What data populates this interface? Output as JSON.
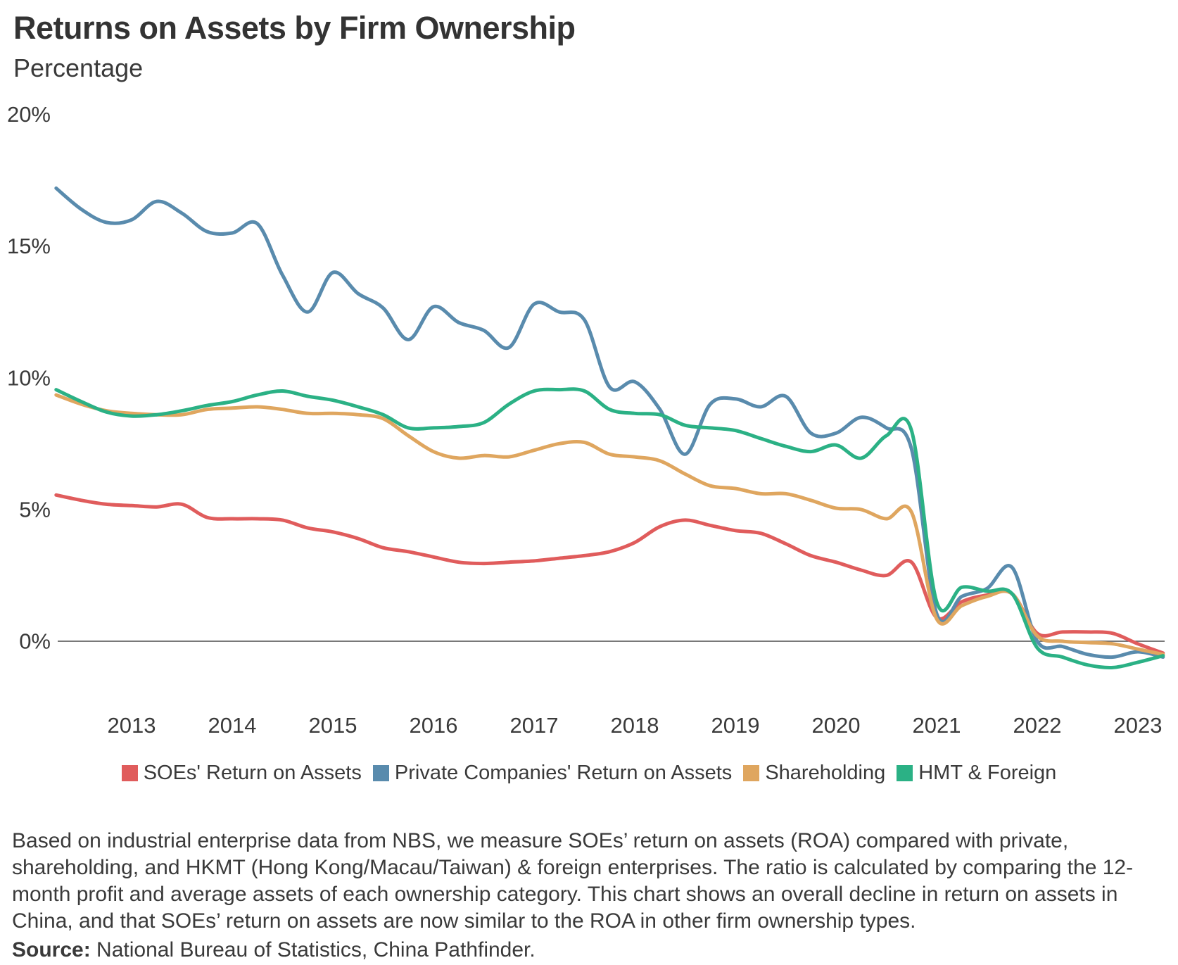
{
  "header": {
    "title": "Returns on Assets by Firm Ownership",
    "subtitle": "Percentage"
  },
  "caption": "Based on industrial enterprise data from NBS, we measure SOEs’ return on assets (ROA) compared with private, shareholding, and HKMT (Hong Kong/Macau/Taiwan) & foreign enterprises. The ratio is calculated by comparing the 12-month profit and average assets of each ownership category. This chart shows an overall decline in return on assets in China, and that SOEs’ return on assets are now similar to the ROA in other firm ownership types.",
  "source_label": "Source:",
  "source_text": " National Bureau of Statistics, China Pathfinder.",
  "colors": {
    "soe": "#E05C5C",
    "private": "#598BAD",
    "shareholding": "#DFA65F",
    "hmt": "#2BB185",
    "axis_line": "#4d4d4d",
    "text": "#3a3a3a"
  },
  "chart_data": {
    "type": "line",
    "title": "Returns on Assets by Firm Ownership",
    "ylabel": "Percentage",
    "xlabel": "",
    "grid": false,
    "legend_position": "bottom",
    "ylim": [
      -2,
      20
    ],
    "xlim": [
      2012.25,
      2023.3
    ],
    "yticks": [
      {
        "value": 20,
        "label": "20%"
      },
      {
        "value": 15,
        "label": "15%"
      },
      {
        "value": 10,
        "label": "10%"
      },
      {
        "value": 5,
        "label": "5%"
      },
      {
        "value": 0,
        "label": "0%"
      }
    ],
    "xticks": [
      {
        "value": 2013,
        "label": "2013"
      },
      {
        "value": 2014,
        "label": "2014"
      },
      {
        "value": 2015,
        "label": "2015"
      },
      {
        "value": 2016,
        "label": "2016"
      },
      {
        "value": 2017,
        "label": "2017"
      },
      {
        "value": 2018,
        "label": "2018"
      },
      {
        "value": 2019,
        "label": "2019"
      },
      {
        "value": 2020,
        "label": "2020"
      },
      {
        "value": 2021,
        "label": "2021"
      },
      {
        "value": 2022,
        "label": "2022"
      },
      {
        "value": 2023,
        "label": "2023"
      }
    ],
    "x": [
      2012.25,
      2012.5,
      2012.75,
      2013,
      2013.25,
      2013.5,
      2013.75,
      2014,
      2014.25,
      2014.5,
      2014.75,
      2015,
      2015.25,
      2015.5,
      2015.75,
      2016,
      2016.25,
      2016.5,
      2016.75,
      2017,
      2017.25,
      2017.5,
      2017.75,
      2018,
      2018.25,
      2018.5,
      2018.75,
      2019,
      2019.25,
      2019.5,
      2019.75,
      2020,
      2020.25,
      2020.5,
      2020.75,
      2021,
      2021.25,
      2021.5,
      2021.75,
      2022,
      2022.25,
      2022.5,
      2022.75,
      2023,
      2023.25
    ],
    "series": [
      {
        "id": "soe",
        "name": "SOEs' Return on Assets",
        "color": "#E05C5C",
        "values": [
          5.55,
          5.35,
          5.2,
          5.15,
          5.1,
          5.2,
          4.7,
          4.65,
          4.65,
          4.6,
          4.3,
          4.15,
          3.9,
          3.55,
          3.4,
          3.2,
          3.0,
          2.95,
          3.0,
          3.05,
          3.15,
          3.25,
          3.4,
          3.75,
          4.35,
          4.6,
          4.4,
          4.2,
          4.1,
          3.7,
          3.25,
          3.0,
          2.7,
          2.5,
          3.0,
          0.9,
          1.5,
          1.75,
          1.8,
          0.3,
          0.35,
          0.35,
          0.3,
          -0.1,
          -0.45
        ]
      },
      {
        "id": "private",
        "name": "Private Companies' Return on Assets",
        "color": "#598BAD",
        "values": [
          17.2,
          16.4,
          15.9,
          16.0,
          16.7,
          16.25,
          15.55,
          15.5,
          15.85,
          13.9,
          12.5,
          14.0,
          13.2,
          12.65,
          11.45,
          12.7,
          12.1,
          11.8,
          11.15,
          12.8,
          12.5,
          12.2,
          9.65,
          9.85,
          8.8,
          7.1,
          9.0,
          9.2,
          8.9,
          9.3,
          7.9,
          7.9,
          8.5,
          8.1,
          7.3,
          1.05,
          1.7,
          2.0,
          2.8,
          0.0,
          -0.2,
          -0.5,
          -0.6,
          -0.4,
          -0.6
        ]
      },
      {
        "id": "shareholding",
        "name": "Shareholding",
        "color": "#DFA65F",
        "values": [
          9.35,
          9.0,
          8.75,
          8.65,
          8.6,
          8.6,
          8.8,
          8.85,
          8.9,
          8.8,
          8.65,
          8.65,
          8.6,
          8.45,
          7.8,
          7.2,
          6.95,
          7.05,
          7.0,
          7.25,
          7.5,
          7.55,
          7.1,
          7.0,
          6.85,
          6.35,
          5.9,
          5.8,
          5.6,
          5.6,
          5.35,
          5.05,
          5.0,
          4.65,
          4.9,
          0.85,
          1.35,
          1.7,
          1.8,
          0.2,
          0.0,
          -0.05,
          -0.1,
          -0.3,
          -0.5
        ]
      },
      {
        "id": "hmt",
        "name": "HMT & Foreign",
        "color": "#2BB185",
        "values": [
          9.55,
          9.1,
          8.7,
          8.55,
          8.6,
          8.75,
          8.95,
          9.1,
          9.35,
          9.5,
          9.3,
          9.15,
          8.9,
          8.6,
          8.1,
          8.1,
          8.15,
          8.3,
          9.0,
          9.5,
          9.55,
          9.5,
          8.8,
          8.65,
          8.6,
          8.2,
          8.1,
          8.0,
          7.7,
          7.4,
          7.2,
          7.45,
          6.95,
          7.8,
          8.0,
          1.5,
          2.05,
          1.9,
          1.8,
          -0.25,
          -0.6,
          -0.9,
          -1.0,
          -0.8,
          -0.55
        ]
      }
    ]
  }
}
